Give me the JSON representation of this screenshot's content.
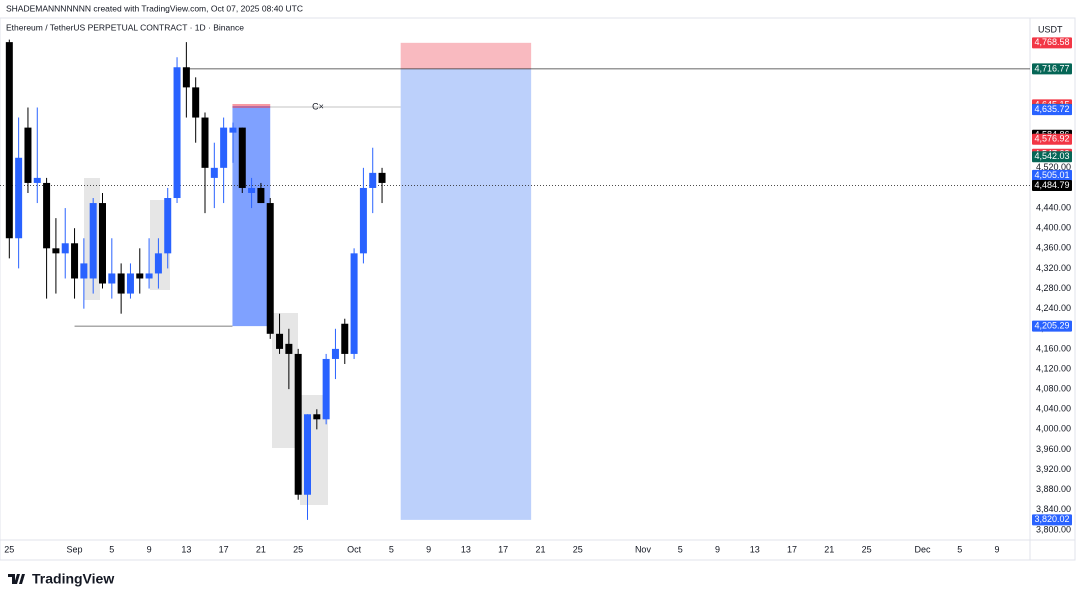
{
  "header": {
    "credit": "SHADEMANNNNNNN created with TradingView.com, Oct 07, 2025 08:40 UTC",
    "brand": "TradingView"
  },
  "chart_data": {
    "type": "candlestick",
    "title": "Ethereum / TetherUS PERPETUAL CONTRACT · 1D · Binance",
    "y_axis_label": "USDT",
    "up_color": "#2962ff",
    "down_color": "#000000",
    "grid": false,
    "x": [
      "2025-08-25",
      "2025-08-26",
      "2025-08-27",
      "2025-08-28",
      "2025-08-29",
      "2025-08-30",
      "2025-08-31",
      "2025-09-01",
      "2025-09-02",
      "2025-09-03",
      "2025-09-04",
      "2025-09-05",
      "2025-09-06",
      "2025-09-07",
      "2025-09-08",
      "2025-09-09",
      "2025-09-10",
      "2025-09-11",
      "2025-09-12",
      "2025-09-13",
      "2025-09-14",
      "2025-09-15",
      "2025-09-16",
      "2025-09-17",
      "2025-09-18",
      "2025-09-19",
      "2025-09-20",
      "2025-09-21",
      "2025-09-22",
      "2025-09-23",
      "2025-09-24",
      "2025-09-25",
      "2025-09-26",
      "2025-09-27",
      "2025-09-28",
      "2025-09-29",
      "2025-09-30",
      "2025-10-01",
      "2025-10-02",
      "2025-10-03",
      "2025-10-04"
    ],
    "open": [
      4770,
      4380,
      4600,
      4490,
      4490,
      4360,
      4350,
      4370,
      4300,
      4300,
      4450,
      4290,
      4310,
      4270,
      4310,
      4300,
      4310,
      4350,
      4460,
      4720,
      4680,
      4620,
      4500,
      4520,
      4590,
      4600,
      4470,
      4480,
      4450,
      4190,
      4170,
      4150,
      3870,
      4030,
      4020,
      4140,
      4210,
      4150,
      4350,
      4480,
      4510
    ],
    "high": [
      4775,
      4620,
      4640,
      4640,
      4500,
      4420,
      4440,
      4400,
      4380,
      4460,
      4470,
      4380,
      4330,
      4330,
      4360,
      4380,
      4380,
      4480,
      4740,
      4770,
      4700,
      4630,
      4570,
      4620,
      4610,
      4600,
      4500,
      4490,
      4460,
      4230,
      4200,
      4160,
      4030,
      4040,
      4150,
      4200,
      4220,
      4360,
      4520,
      4560,
      4520
    ],
    "low": [
      4340,
      4320,
      4470,
      4450,
      4260,
      4270,
      4300,
      4260,
      4240,
      4270,
      4280,
      4260,
      4230,
      4260,
      4270,
      4280,
      4280,
      4320,
      4450,
      4620,
      4570,
      4430,
      4440,
      4450,
      4530,
      4470,
      4440,
      4450,
      4180,
      4150,
      4080,
      3860,
      3820,
      4000,
      4010,
      4100,
      4130,
      4140,
      4330,
      4430,
      4450
    ],
    "close": [
      4380,
      4540,
      4490,
      4500,
      4360,
      4350,
      4370,
      4300,
      4330,
      4450,
      4290,
      4310,
      4270,
      4310,
      4300,
      4310,
      4350,
      4460,
      4720,
      4680,
      4620,
      4520,
      4520,
      4600,
      4600,
      4480,
      4480,
      4450,
      4190,
      4160,
      4150,
      3870,
      4030,
      4020,
      4140,
      4160,
      4150,
      4350,
      4480,
      4510,
      4490
    ],
    "xlim": [
      "2025-08-24",
      "2025-12-12"
    ],
    "xticks": [
      {
        "value": "2025-08-25",
        "label": "25"
      },
      {
        "value": "2025-09-01",
        "label": "Sep"
      },
      {
        "value": "2025-09-05",
        "label": "5"
      },
      {
        "value": "2025-09-09",
        "label": "9"
      },
      {
        "value": "2025-09-13",
        "label": "13"
      },
      {
        "value": "2025-09-17",
        "label": "17"
      },
      {
        "value": "2025-09-21",
        "label": "21"
      },
      {
        "value": "2025-09-25",
        "label": "25"
      },
      {
        "value": "2025-10-01",
        "label": "Oct"
      },
      {
        "value": "2025-10-05",
        "label": "5"
      },
      {
        "value": "2025-10-09",
        "label": "9"
      },
      {
        "value": "2025-10-13",
        "label": "13"
      },
      {
        "value": "2025-10-17",
        "label": "17"
      },
      {
        "value": "2025-10-21",
        "label": "21"
      },
      {
        "value": "2025-10-25",
        "label": "25"
      },
      {
        "value": "2025-11-01",
        "label": "Nov"
      },
      {
        "value": "2025-11-05",
        "label": "5"
      },
      {
        "value": "2025-11-09",
        "label": "9"
      },
      {
        "value": "2025-11-13",
        "label": "13"
      },
      {
        "value": "2025-11-17",
        "label": "17"
      },
      {
        "value": "2025-11-21",
        "label": "21"
      },
      {
        "value": "2025-11-25",
        "label": "25"
      },
      {
        "value": "2025-12-01",
        "label": "Dec"
      },
      {
        "value": "2025-12-05",
        "label": "5"
      },
      {
        "value": "2025-12-09",
        "label": "9"
      }
    ],
    "ylim": [
      3780,
      4810
    ],
    "yticks": [
      {
        "value": 3800,
        "label": "3,800.00"
      },
      {
        "value": 3840,
        "label": "3,840.00"
      },
      {
        "value": 3880,
        "label": "3,880.00"
      },
      {
        "value": 3920,
        "label": "3,920.00"
      },
      {
        "value": 3960,
        "label": "3,960.00"
      },
      {
        "value": 4000,
        "label": "4,000.00"
      },
      {
        "value": 4040,
        "label": "4,040.00"
      },
      {
        "value": 4080,
        "label": "4,080.00"
      },
      {
        "value": 4120,
        "label": "4,120.00"
      },
      {
        "value": 4160,
        "label": "4,160.00"
      },
      {
        "value": 4200,
        "label": "4,200.00"
      },
      {
        "value": 4240,
        "label": "4,240.00"
      },
      {
        "value": 4280,
        "label": "4,280.00"
      },
      {
        "value": 4320,
        "label": "4,320.00"
      },
      {
        "value": 4360,
        "label": "4,360.00"
      },
      {
        "value": 4400,
        "label": "4,400.00"
      },
      {
        "value": 4440,
        "label": "4,440.00"
      },
      {
        "value": 4520,
        "label": "4,520.00"
      }
    ],
    "price_labels": [
      {
        "value": 4768.58,
        "label": "4,768.58",
        "color": "#f23645"
      },
      {
        "value": 4716.77,
        "label": "4,716.77",
        "color": "#056656"
      },
      {
        "value": 4645.15,
        "label": "4,645.15",
        "color": "#f23645"
      },
      {
        "value": 4636.38,
        "label": "4,636.38",
        "color": "#056656"
      },
      {
        "value": 4635.72,
        "label": "4,635.72",
        "color": "#2962ff"
      },
      {
        "value": 4584.86,
        "label": "4,584.86",
        "color": "#000000"
      },
      {
        "value": 4576.92,
        "label": "4,576.92",
        "color": "#f23645"
      },
      {
        "value": 4547.09,
        "label": "4,547.09",
        "color": "#f23645"
      },
      {
        "value": 4542.03,
        "label": "4,542.03",
        "color": "#056656"
      },
      {
        "value": 4505.01,
        "label": "4,505.01",
        "color": "#2962ff"
      },
      {
        "value": 4484.79,
        "label": "4,484.79",
        "color": "#000000"
      },
      {
        "value": 4205.29,
        "label": "4,205.29",
        "color": "#2962ff"
      },
      {
        "value": 3820.02,
        "label": "3,820.02",
        "color": "#2962ff"
      }
    ],
    "annotation": "C×"
  }
}
